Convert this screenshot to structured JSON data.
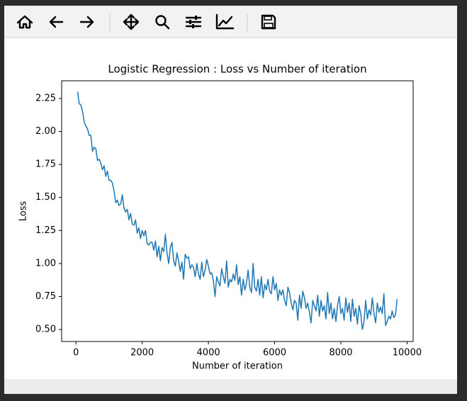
{
  "chart_data": {
    "type": "line",
    "title": "Logistic Regression : Loss vs Number of iteration",
    "x_label": "Number of iteration",
    "y_label": "Loss",
    "color": "#1f77b4",
    "x": [
      50,
      100,
      150,
      200,
      250,
      300,
      350,
      400,
      450,
      500,
      550,
      600,
      650,
      700,
      750,
      800,
      850,
      900,
      950,
      1000,
      1050,
      1100,
      1150,
      1200,
      1250,
      1300,
      1350,
      1400,
      1450,
      1500,
      1550,
      1600,
      1650,
      1700,
      1750,
      1800,
      1850,
      1900,
      1950,
      2000,
      2050,
      2100,
      2150,
      2200,
      2250,
      2300,
      2350,
      2400,
      2450,
      2500,
      2550,
      2600,
      2650,
      2700,
      2750,
      2800,
      2850,
      2900,
      2950,
      3000,
      3050,
      3100,
      3150,
      3200,
      3250,
      3300,
      3350,
      3400,
      3450,
      3500,
      3550,
      3600,
      3650,
      3700,
      3750,
      3800,
      3850,
      3900,
      3950,
      4000,
      4050,
      4100,
      4150,
      4200,
      4250,
      4300,
      4350,
      4400,
      4450,
      4500,
      4550,
      4600,
      4650,
      4700,
      4750,
      4800,
      4850,
      4900,
      4950,
      5000,
      5050,
      5100,
      5150,
      5200,
      5250,
      5300,
      5350,
      5400,
      5450,
      5500,
      5550,
      5600,
      5650,
      5700,
      5750,
      5800,
      5850,
      5900,
      5950,
      6000,
      6050,
      6100,
      6150,
      6200,
      6250,
      6300,
      6350,
      6400,
      6450,
      6500,
      6550,
      6600,
      6650,
      6700,
      6750,
      6800,
      6850,
      6900,
      6950,
      7000,
      7050,
      7100,
      7150,
      7200,
      7250,
      7300,
      7350,
      7400,
      7450,
      7500,
      7550,
      7600,
      7650,
      7700,
      7750,
      7800,
      7850,
      7900,
      7950,
      8000,
      8050,
      8100,
      8150,
      8200,
      8250,
      8300,
      8350,
      8400,
      8450,
      8500,
      8550,
      8600,
      8650,
      8700,
      8750,
      8800,
      8850,
      8900,
      8950,
      9000,
      9050,
      9100,
      9150,
      9200,
      9250,
      9300,
      9350,
      9400,
      9450,
      9500,
      9550,
      9600,
      9650,
      9700
    ],
    "values": [
      2.3,
      2.21,
      2.2,
      2.15,
      2.07,
      2.04,
      2.02,
      1.97,
      1.97,
      1.85,
      1.88,
      1.87,
      1.78,
      1.79,
      1.76,
      1.71,
      1.74,
      1.66,
      1.7,
      1.63,
      1.63,
      1.61,
      1.55,
      1.46,
      1.48,
      1.44,
      1.45,
      1.52,
      1.42,
      1.39,
      1.41,
      1.33,
      1.38,
      1.3,
      1.29,
      1.33,
      1.23,
      1.27,
      1.19,
      1.25,
      1.21,
      1.25,
      1.15,
      1.14,
      1.16,
      1.16,
      1.1,
      1.17,
      1.05,
      1.13,
      1.02,
      1.12,
      1.09,
      1.22,
      1.08,
      1.0,
      1.12,
      1.16,
      1.02,
      0.98,
      1.08,
      1.02,
      0.94,
      1.01,
      0.88,
      1.07,
      1.04,
      1.05,
      0.96,
      0.99,
      0.97,
      0.9,
      1.0,
      0.92,
      0.88,
      1.01,
      0.9,
      0.95,
      1.03,
      0.98,
      0.92,
      0.93,
      0.87,
      0.75,
      0.9,
      0.86,
      0.83,
      0.96,
      0.9,
      0.85,
      1.02,
      0.82,
      0.88,
      0.86,
      0.92,
      0.87,
      0.99,
      0.84,
      0.9,
      0.76,
      0.88,
      0.8,
      0.85,
      0.95,
      0.82,
      0.78,
      1.0,
      0.82,
      0.79,
      0.88,
      0.76,
      0.9,
      0.74,
      0.84,
      0.8,
      0.88,
      0.79,
      0.77,
      0.9,
      0.8,
      0.85,
      0.72,
      0.8,
      0.76,
      0.8,
      0.72,
      0.68,
      0.82,
      0.78,
      0.7,
      0.65,
      0.72,
      0.7,
      0.57,
      0.76,
      0.66,
      0.79,
      0.74,
      0.66,
      0.7,
      0.63,
      0.55,
      0.72,
      0.68,
      0.64,
      0.76,
      0.6,
      0.72,
      0.64,
      0.68,
      0.58,
      0.78,
      0.62,
      0.7,
      0.58,
      0.66,
      0.56,
      0.68,
      0.75,
      0.62,
      0.66,
      0.57,
      0.74,
      0.63,
      0.7,
      0.56,
      0.73,
      0.6,
      0.66,
      0.54,
      0.68,
      0.62,
      0.5,
      0.56,
      0.72,
      0.58,
      0.65,
      0.61,
      0.74,
      0.62,
      0.55,
      0.7,
      0.63,
      0.67,
      0.62,
      0.77,
      0.53,
      0.56,
      0.6,
      0.58,
      0.64,
      0.59,
      0.61,
      0.73
    ],
    "xlim": [
      -432,
      10183
    ],
    "ylim": [
      0.409,
      2.384
    ],
    "xticks": [
      0,
      2000,
      4000,
      6000,
      8000,
      10000
    ],
    "yticks": [
      {
        "value": 0.5,
        "label": "0.50"
      },
      0.75,
      {
        "value": 1.0,
        "label": "1.00"
      },
      1.25,
      {
        "value": 1.5,
        "label": "1.50"
      },
      1.75,
      {
        "value": 2.0,
        "label": "2.00"
      },
      2.25
    ],
    "grid": false
  }
}
